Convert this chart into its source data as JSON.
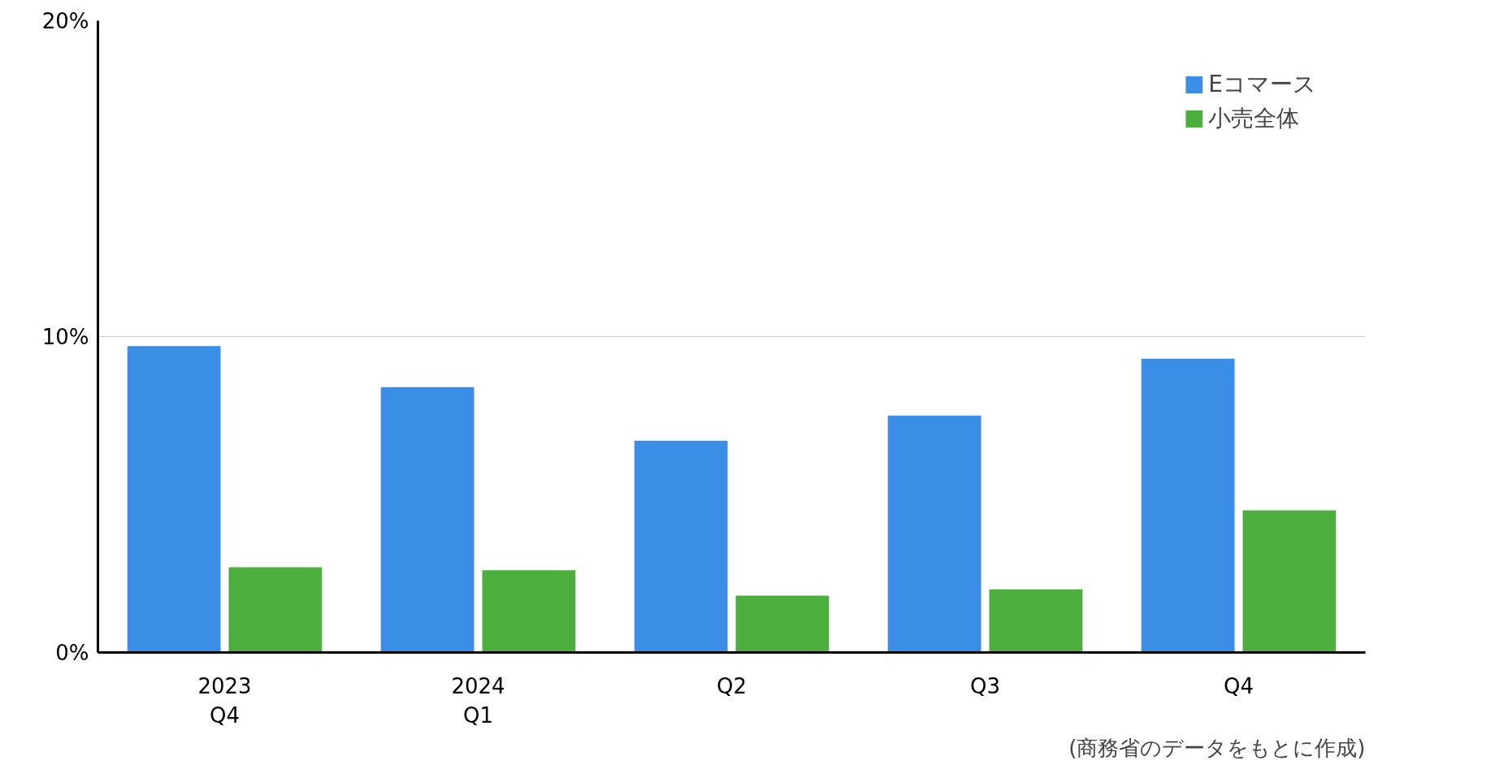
{
  "chart_data": {
    "type": "bar",
    "categories": [
      "2023\nQ4",
      "2024\nQ1",
      "Q2",
      "Q3",
      "Q4"
    ],
    "series": [
      {
        "name": "Eコマース",
        "color": "#3a8ee6",
        "values": [
          9.7,
          8.4,
          6.7,
          7.5,
          9.3
        ]
      },
      {
        "name": "小売全体",
        "color": "#4cae3c",
        "values": [
          2.7,
          2.6,
          1.8,
          2.0,
          4.5
        ]
      }
    ],
    "ylim": [
      0,
      20
    ],
    "yticks": [
      {
        "value": 0,
        "label": "0%"
      },
      {
        "value": 10,
        "label": "10%"
      },
      {
        "value": 20,
        "label": "20%"
      }
    ],
    "grid": "y",
    "legend": "top right",
    "annotations": [
      "(商務省のデータをもとに作成)"
    ]
  }
}
